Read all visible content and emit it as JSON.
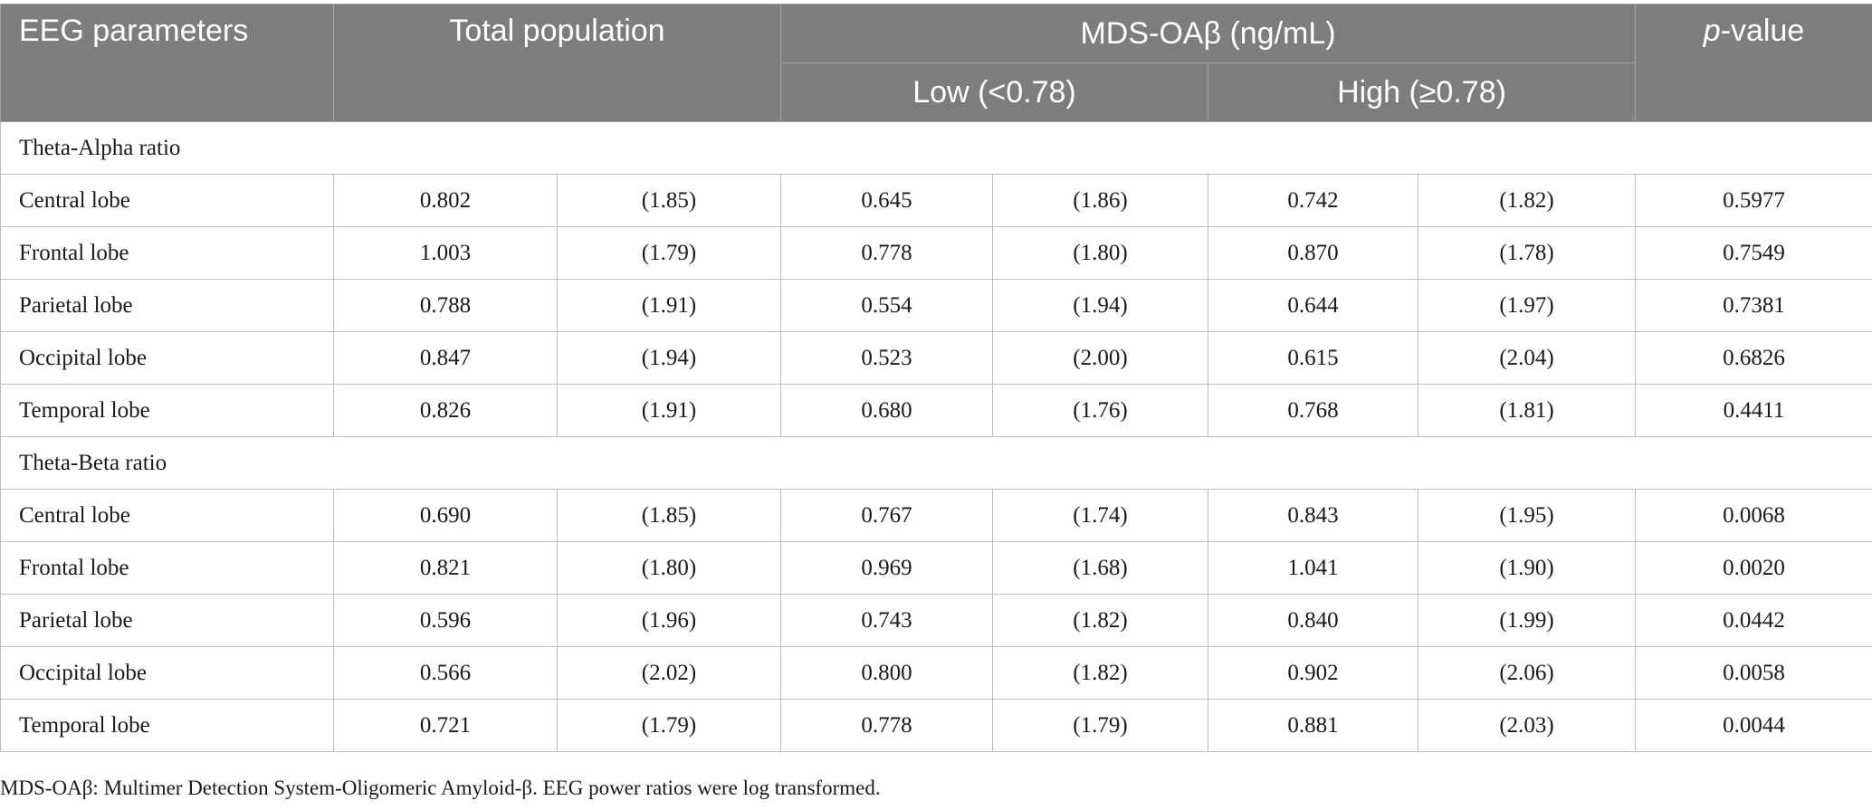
{
  "header": {
    "eeg_parameters": "EEG parameters",
    "total_population": "Total population",
    "mds_group": "MDS-OAβ (ng/mL)",
    "low": "Low (<0.78)",
    "high": "High (≥0.78)",
    "p_value_prefix": "p",
    "p_value_suffix": "-value"
  },
  "sections": [
    {
      "title": "Theta-Alpha ratio",
      "rows": [
        {
          "label": "Central lobe",
          "total": "0.802",
          "total_sd": "(1.85)",
          "low": "0.645",
          "low_sd": "(1.86)",
          "high": "0.742",
          "high_sd": "(1.82)",
          "p": "0.5977"
        },
        {
          "label": "Frontal lobe",
          "total": "1.003",
          "total_sd": "(1.79)",
          "low": "0.778",
          "low_sd": "(1.80)",
          "high": "0.870",
          "high_sd": "(1.78)",
          "p": "0.7549"
        },
        {
          "label": "Parietal lobe",
          "total": "0.788",
          "total_sd": "(1.91)",
          "low": "0.554",
          "low_sd": "(1.94)",
          "high": "0.644",
          "high_sd": "(1.97)",
          "p": "0.7381"
        },
        {
          "label": "Occipital lobe",
          "total": "0.847",
          "total_sd": "(1.94)",
          "low": "0.523",
          "low_sd": "(2.00)",
          "high": "0.615",
          "high_sd": "(2.04)",
          "p": "0.6826"
        },
        {
          "label": "Temporal lobe",
          "total": "0.826",
          "total_sd": "(1.91)",
          "low": "0.680",
          "low_sd": "(1.76)",
          "high": "0.768",
          "high_sd": "(1.81)",
          "p": "0.4411"
        }
      ]
    },
    {
      "title": "Theta-Beta ratio",
      "rows": [
        {
          "label": "Central lobe",
          "total": "0.690",
          "total_sd": "(1.85)",
          "low": "0.767",
          "low_sd": "(1.74)",
          "high": "0.843",
          "high_sd": "(1.95)",
          "p": "0.0068"
        },
        {
          "label": "Frontal lobe",
          "total": "0.821",
          "total_sd": "(1.80)",
          "low": "0.969",
          "low_sd": "(1.68)",
          "high": "1.041",
          "high_sd": "(1.90)",
          "p": "0.0020"
        },
        {
          "label": "Parietal lobe",
          "total": "0.596",
          "total_sd": "(1.96)",
          "low": "0.743",
          "low_sd": "(1.82)",
          "high": "0.840",
          "high_sd": "(1.99)",
          "p": "0.0442"
        },
        {
          "label": "Occipital lobe",
          "total": "0.566",
          "total_sd": "(2.02)",
          "low": "0.800",
          "low_sd": "(1.82)",
          "high": "0.902",
          "high_sd": "(2.06)",
          "p": "0.0058"
        },
        {
          "label": "Temporal lobe",
          "total": "0.721",
          "total_sd": "(1.79)",
          "low": "0.778",
          "low_sd": "(1.79)",
          "high": "0.881",
          "high_sd": "(2.03)",
          "p": "0.0044"
        }
      ]
    }
  ],
  "footnote": "MDS-OAβ: Multimer Detection System-Oligomeric Amyloid-β. EEG power ratios were log transformed.",
  "colors": {
    "header_bg": "#7d7d7c",
    "header_text": "#ffffff",
    "border": "#bdbdbd"
  }
}
